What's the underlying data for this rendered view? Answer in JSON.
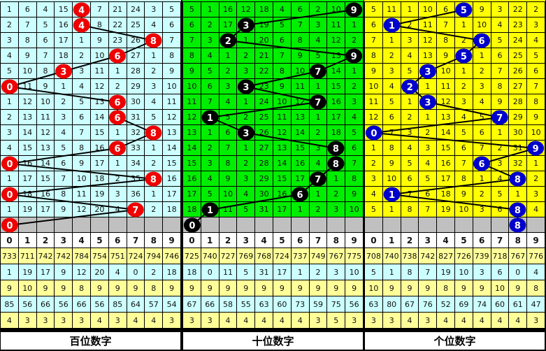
{
  "chart_data": {
    "type": "table",
    "sections": [
      {
        "title": "百位数字",
        "bg": "#ccffff",
        "ball_color": "#ee0000",
        "hits": [
          4,
          4,
          8,
          6,
          3,
          0,
          6,
          6,
          8,
          6,
          0,
          8,
          0,
          7
        ],
        "current_hit": 0,
        "rows": [
          [
            1,
            6,
            4,
            15,
            4,
            7,
            21,
            24,
            3,
            5
          ],
          [
            2,
            7,
            5,
            16,
            4,
            8,
            22,
            25,
            4,
            6
          ],
          [
            3,
            8,
            6,
            17,
            1,
            9,
            23,
            26,
            8,
            7
          ],
          [
            4,
            9,
            7,
            18,
            2,
            10,
            6,
            27,
            1,
            8
          ],
          [
            5,
            10,
            8,
            3,
            3,
            11,
            1,
            28,
            2,
            9
          ],
          [
            0,
            11,
            9,
            1,
            4,
            12,
            2,
            29,
            3,
            10
          ],
          [
            1,
            12,
            10,
            2,
            5,
            13,
            6,
            30,
            4,
            11
          ],
          [
            2,
            13,
            11,
            3,
            6,
            14,
            6,
            31,
            5,
            12
          ],
          [
            3,
            14,
            12,
            4,
            7,
            15,
            1,
            32,
            8,
            13
          ],
          [
            4,
            15,
            13,
            5,
            8,
            16,
            6,
            33,
            1,
            14
          ],
          [
            0,
            16,
            14,
            6,
            9,
            17,
            1,
            34,
            2,
            15
          ],
          [
            1,
            17,
            15,
            7,
            10,
            18,
            2,
            35,
            8,
            16
          ],
          [
            0,
            18,
            16,
            8,
            11,
            19,
            3,
            36,
            1,
            17
          ],
          [
            1,
            19,
            17,
            9,
            12,
            20,
            4,
            7,
            2,
            18
          ]
        ],
        "digits": [
          "0",
          "1",
          "2",
          "3",
          "4",
          "5",
          "6",
          "7",
          "8",
          "9"
        ],
        "stats": [
          [
            733,
            711,
            742,
            742,
            784,
            754,
            751,
            724,
            794,
            746
          ],
          [
            1,
            19,
            17,
            9,
            12,
            20,
            4,
            0,
            2,
            18
          ],
          [
            9,
            10,
            9,
            9,
            8,
            9,
            9,
            9,
            8,
            9
          ],
          [
            85,
            56,
            66,
            56,
            66,
            56,
            85,
            64,
            57,
            54
          ],
          [
            4,
            3,
            3,
            3,
            3,
            4,
            3,
            4,
            4,
            3
          ]
        ]
      },
      {
        "title": "十位数字",
        "bg": "#00ee00",
        "ball_color": "#000000",
        "hits": [
          9,
          3,
          2,
          9,
          7,
          3,
          7,
          1,
          3,
          8,
          8,
          7,
          6,
          1
        ],
        "current_hit": 0,
        "rows": [
          [
            5,
            1,
            16,
            12,
            18,
            4,
            6,
            2,
            10,
            9
          ],
          [
            6,
            2,
            17,
            3,
            19,
            5,
            7,
            3,
            11,
            1
          ],
          [
            7,
            3,
            2,
            1,
            20,
            6,
            8,
            4,
            12,
            2
          ],
          [
            8,
            4,
            1,
            2,
            21,
            7,
            9,
            5,
            13,
            9
          ],
          [
            9,
            5,
            2,
            3,
            22,
            8,
            10,
            7,
            14,
            1
          ],
          [
            10,
            6,
            3,
            3,
            23,
            9,
            11,
            1,
            15,
            2
          ],
          [
            11,
            7,
            4,
            1,
            24,
            10,
            12,
            7,
            16,
            3
          ],
          [
            12,
            1,
            5,
            2,
            25,
            11,
            13,
            1,
            17,
            4
          ],
          [
            13,
            1,
            6,
            3,
            26,
            12,
            14,
            2,
            18,
            5
          ],
          [
            14,
            2,
            7,
            1,
            27,
            13,
            15,
            3,
            8,
            6
          ],
          [
            15,
            3,
            8,
            2,
            28,
            14,
            16,
            4,
            8,
            7
          ],
          [
            16,
            4,
            9,
            3,
            29,
            15,
            17,
            7,
            1,
            8
          ],
          [
            17,
            5,
            10,
            4,
            30,
            16,
            6,
            1,
            2,
            9
          ],
          [
            18,
            1,
            11,
            5,
            31,
            17,
            1,
            2,
            3,
            10
          ]
        ],
        "digits": [
          "0",
          "1",
          "2",
          "3",
          "4",
          "5",
          "6",
          "7",
          "8",
          "9"
        ],
        "stats": [
          [
            725,
            740,
            727,
            769,
            768,
            724,
            737,
            749,
            767,
            775
          ],
          [
            18,
            0,
            11,
            5,
            31,
            17,
            1,
            2,
            3,
            10
          ],
          [
            9,
            9,
            9,
            9,
            9,
            9,
            9,
            9,
            9,
            9
          ],
          [
            67,
            66,
            58,
            55,
            63,
            60,
            73,
            59,
            75,
            56
          ],
          [
            3,
            3,
            4,
            4,
            4,
            4,
            4,
            3,
            5,
            3
          ]
        ]
      },
      {
        "title": "个位数字",
        "bg": "#ffff00",
        "ball_color": "#0000cc",
        "hits": [
          5,
          1,
          6,
          5,
          3,
          2,
          3,
          7,
          0,
          9,
          6,
          8,
          1,
          8
        ],
        "current_hit": 8,
        "rows": [
          [
            5,
            11,
            1,
            10,
            6,
            5,
            9,
            3,
            22,
            2
          ],
          [
            6,
            1,
            2,
            11,
            7,
            1,
            10,
            4,
            23,
            3
          ],
          [
            7,
            1,
            3,
            12,
            8,
            2,
            6,
            5,
            24,
            4
          ],
          [
            8,
            2,
            4,
            13,
            9,
            5,
            1,
            6,
            25,
            5
          ],
          [
            9,
            3,
            5,
            3,
            10,
            1,
            2,
            7,
            26,
            6
          ],
          [
            10,
            4,
            2,
            1,
            11,
            2,
            3,
            8,
            27,
            7
          ],
          [
            11,
            5,
            1,
            3,
            12,
            3,
            4,
            9,
            28,
            8
          ],
          [
            12,
            6,
            2,
            1,
            13,
            4,
            5,
            7,
            29,
            9
          ],
          [
            0,
            7,
            3,
            2,
            14,
            5,
            6,
            1,
            30,
            10
          ],
          [
            1,
            8,
            4,
            3,
            15,
            6,
            7,
            2,
            31,
            9
          ],
          [
            2,
            9,
            5,
            4,
            16,
            7,
            6,
            3,
            32,
            1
          ],
          [
            3,
            10,
            6,
            5,
            17,
            8,
            1,
            4,
            8,
            2
          ],
          [
            4,
            1,
            7,
            6,
            18,
            9,
            2,
            5,
            1,
            3
          ],
          [
            5,
            1,
            8,
            7,
            19,
            10,
            3,
            6,
            8,
            4
          ]
        ],
        "digits": [
          "0",
          "1",
          "2",
          "3",
          "4",
          "5",
          "6",
          "7",
          "8",
          "9"
        ],
        "stats": [
          [
            708,
            740,
            738,
            742,
            827,
            726,
            739,
            718,
            767,
            776
          ],
          [
            5,
            1,
            8,
            7,
            19,
            10,
            3,
            6,
            0,
            4
          ],
          [
            10,
            9,
            9,
            9,
            8,
            9,
            9,
            10,
            9,
            8
          ],
          [
            63,
            80,
            67,
            76,
            52,
            69,
            74,
            60,
            61,
            47
          ],
          [
            3,
            3,
            4,
            3,
            4,
            4,
            4,
            4,
            4,
            3
          ]
        ]
      }
    ],
    "stat_row_colors": [
      "#ffff99",
      "#ccffff",
      "#ffff99",
      "#ccffff",
      "#ffff99"
    ]
  }
}
